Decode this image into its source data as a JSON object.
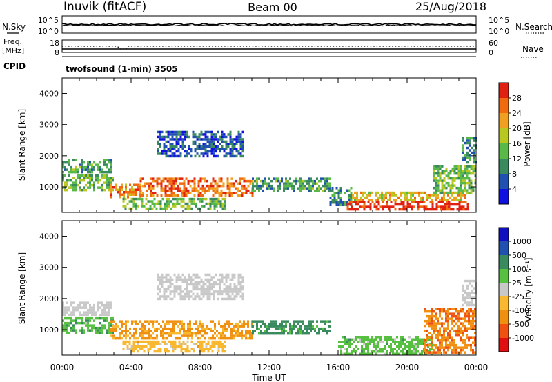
{
  "header": {
    "site": "Inuvik (fitACF)",
    "beam": "Beam 00",
    "date": "25/Aug/2018"
  },
  "summary": {
    "nsky_label": "N.Sky",
    "nsky_hi": "10^5",
    "nsky_lo": "10^0",
    "nsearch_hi": "10^5",
    "nsearch_lo": "10^0",
    "nsearch_label": "N.Search",
    "freq_label": "Freq.",
    "freq_unit": "[MHz]",
    "freq_hi": "18",
    "freq_lo": "8",
    "nave_hi": "60",
    "nave_lo": "0",
    "nave_label": "Nave",
    "cpid_label": "CPID",
    "cpid_value": "twofsound (1-min) 3505"
  },
  "colors": {
    "power": [
      "#1010e0",
      "#2050b0",
      "#3a8a60",
      "#58b848",
      "#b8c820",
      "#f0a020",
      "#f06a10",
      "#e02010"
    ],
    "velocity": [
      "#e01010",
      "#f05010",
      "#f09010",
      "#f8b830",
      "#c8c8c8",
      "#58c040",
      "#3a8a60",
      "#2050b0",
      "#1010c0"
    ]
  },
  "chart_data": [
    {
      "type": "heatmap",
      "title": "Power",
      "xlabel": "Time UT",
      "ylabel": "Slant Range [km]",
      "x_ticks": [
        "00:00",
        "04:00",
        "08:00",
        "12:00",
        "16:00",
        "20:00",
        "00:00"
      ],
      "x_range_hours": [
        0,
        24
      ],
      "y_ticks": [
        1000,
        2000,
        3000,
        4000
      ],
      "ylim": [
        180,
        4500
      ],
      "colorbar": {
        "label": "Power [dB]",
        "ticks": [
          4,
          8,
          12,
          16,
          20,
          24,
          28
        ],
        "range": [
          0,
          32
        ]
      },
      "regions": [
        {
          "x": [
            0.0,
            2.8
          ],
          "y": [
            1500,
            1900
          ],
          "value": 12
        },
        {
          "x": [
            0.0,
            3.0
          ],
          "y": [
            900,
            1400
          ],
          "value": 14
        },
        {
          "x": [
            2.8,
            4.5
          ],
          "y": [
            650,
            1100
          ],
          "value": 24
        },
        {
          "x": [
            4.5,
            11.0
          ],
          "y": [
            700,
            1300
          ],
          "value": 26
        },
        {
          "x": [
            3.5,
            9.5
          ],
          "y": [
            300,
            650
          ],
          "value": 14
        },
        {
          "x": [
            5.5,
            10.5
          ],
          "y": [
            2000,
            2800
          ],
          "value": 6
        },
        {
          "x": [
            11.0,
            15.5
          ],
          "y": [
            900,
            1300
          ],
          "value": 12
        },
        {
          "x": [
            15.5,
            16.8
          ],
          "y": [
            400,
            1000
          ],
          "value": 10
        },
        {
          "x": [
            16.5,
            23.5
          ],
          "y": [
            250,
            550
          ],
          "value": 30
        },
        {
          "x": [
            16.8,
            23.3
          ],
          "y": [
            550,
            850
          ],
          "value": 20
        },
        {
          "x": [
            21.5,
            24.0
          ],
          "y": [
            800,
            1700
          ],
          "value": 14
        },
        {
          "x": [
            23.2,
            24.0
          ],
          "y": [
            1800,
            2600
          ],
          "value": 10
        }
      ]
    },
    {
      "type": "heatmap",
      "title": "Velocity",
      "xlabel": "Time UT",
      "ylabel": "Slant Range [km]",
      "x_ticks": [
        "00:00",
        "04:00",
        "08:00",
        "12:00",
        "16:00",
        "20:00",
        "00:00"
      ],
      "x_range_hours": [
        0,
        24
      ],
      "y_ticks": [
        1000,
        2000,
        3000,
        4000
      ],
      "ylim": [
        180,
        4500
      ],
      "colorbar": {
        "label": "Velocity [m s^-1]",
        "ticks": [
          1000,
          500,
          100,
          25,
          -25,
          -100,
          -500,
          -1000
        ]
      },
      "regions": [
        {
          "x": [
            0.0,
            2.8
          ],
          "y": [
            1500,
            1900
          ],
          "value": 0
        },
        {
          "x": [
            0.0,
            3.0
          ],
          "y": [
            900,
            1400
          ],
          "value": 80
        },
        {
          "x": [
            2.8,
            11.0
          ],
          "y": [
            700,
            1300
          ],
          "value": -150
        },
        {
          "x": [
            3.5,
            9.5
          ],
          "y": [
            300,
            650
          ],
          "value": -60
        },
        {
          "x": [
            5.5,
            10.5
          ],
          "y": [
            2000,
            2800
          ],
          "value": 0
        },
        {
          "x": [
            11.0,
            15.5
          ],
          "y": [
            900,
            1300
          ],
          "value": 200
        },
        {
          "x": [
            16.0,
            21.5
          ],
          "y": [
            250,
            800
          ],
          "value": 60
        },
        {
          "x": [
            21.0,
            24.0
          ],
          "y": [
            250,
            1700
          ],
          "value": -400
        },
        {
          "x": [
            23.2,
            24.0
          ],
          "y": [
            1800,
            2600
          ],
          "value": 0
        }
      ]
    }
  ]
}
